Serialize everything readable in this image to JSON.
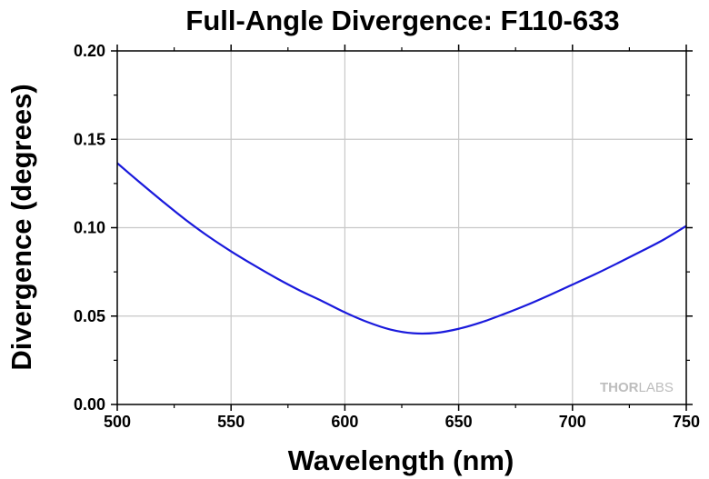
{
  "chart_data": {
    "type": "line",
    "title": "Full-Angle Divergence: F110-633",
    "xlabel": "Wavelength (nm)",
    "ylabel": "Divergence (degrees)",
    "xlim": [
      500,
      750
    ],
    "ylim": [
      0,
      0.2
    ],
    "grid": true,
    "x_ticks": [
      "500",
      "550",
      "600",
      "650",
      "700",
      "750"
    ],
    "y_ticks": [
      "0.00",
      "0.05",
      "0.10",
      "0.15",
      "0.20"
    ],
    "series": [
      {
        "name": "F110-633",
        "color": "#1a1adc",
        "x": [
          500,
          510,
          520,
          530,
          540,
          550,
          560,
          570,
          580,
          590,
          600,
          610,
          620,
          630,
          640,
          650,
          660,
          670,
          680,
          690,
          700,
          710,
          720,
          730,
          740,
          750
        ],
        "y": [
          0.1365,
          0.1255,
          0.1148,
          0.1045,
          0.0951,
          0.0866,
          0.0788,
          0.0714,
          0.0646,
          0.0585,
          0.0521,
          0.0466,
          0.0424,
          0.0403,
          0.0405,
          0.0428,
          0.0465,
          0.0512,
          0.0563,
          0.0619,
          0.0678,
          0.0737,
          0.08,
          0.0865,
          0.0932,
          0.101
        ]
      }
    ]
  },
  "watermark": {
    "thor": "THOR",
    "labs": "LABS"
  }
}
